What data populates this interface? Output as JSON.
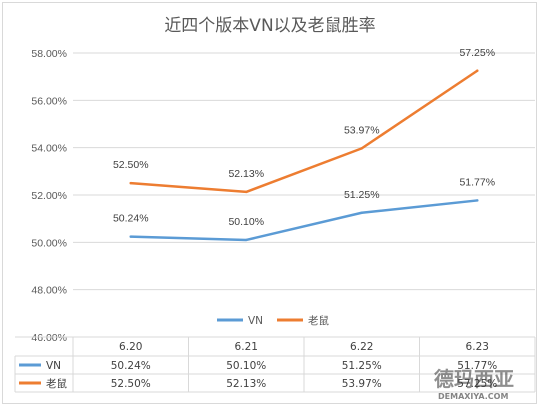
{
  "chart_data": {
    "type": "line",
    "title": "近四个版本VN以及老鼠胜率",
    "categories": [
      "6.20",
      "6.21",
      "6.22",
      "6.23"
    ],
    "ylim": [
      46,
      58
    ],
    "yticks": [
      46,
      48,
      50,
      52,
      54,
      56,
      58
    ],
    "ytick_labels": [
      "46.00%",
      "48.00%",
      "50.00%",
      "52.00%",
      "54.00%",
      "56.00%",
      "58.00%"
    ],
    "grid": true,
    "legend_position": "bottom",
    "data_table": true,
    "series": [
      {
        "name": "VN",
        "color": "#5b9bd5",
        "values": [
          50.24,
          50.1,
          51.25,
          51.77
        ],
        "labels": [
          "50.24%",
          "50.10%",
          "51.25%",
          "51.77%"
        ]
      },
      {
        "name": "老鼠",
        "color": "#ed7d31",
        "values": [
          52.5,
          52.13,
          53.97,
          57.25
        ],
        "labels": [
          "52.50%",
          "52.13%",
          "53.97%",
          "57.25%"
        ]
      }
    ]
  },
  "watermark": {
    "main": "德玛西亚",
    "sub": "DEMAXIYA.COM"
  }
}
